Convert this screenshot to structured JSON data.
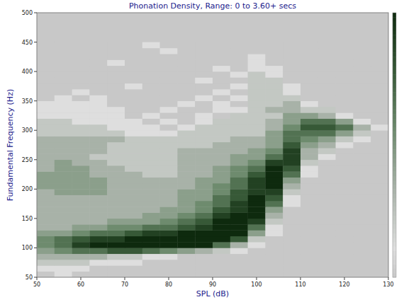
{
  "chart_data": {
    "type": "heatmap",
    "title": "Phonation Density, Range: 0 to 3.60+ secs",
    "x_label": "SPL (dB)",
    "y_label": "Fundamental Frequency (Hz)",
    "xlim": [
      50,
      130
    ],
    "ylim": [
      50,
      500
    ],
    "xticks": [
      50,
      60,
      70,
      80,
      90,
      100,
      110,
      120,
      130
    ],
    "yticks": [
      50,
      100,
      150,
      200,
      250,
      300,
      350,
      400,
      450,
      500
    ],
    "grid": false,
    "x_bins": [
      50,
      54,
      58,
      62,
      66,
      70,
      74,
      78,
      82,
      86,
      90,
      94,
      98,
      102,
      106,
      110,
      114,
      118,
      122,
      126,
      130
    ],
    "y_bins": [
      50,
      60,
      70,
      80,
      90,
      100,
      110,
      120,
      130,
      140,
      150,
      160,
      170,
      180,
      190,
      200,
      210,
      220,
      230,
      240,
      250,
      260,
      270,
      280,
      290,
      300,
      310,
      320,
      330,
      340,
      350,
      360,
      370,
      380,
      390,
      400,
      410,
      420,
      430,
      440,
      450
    ],
    "zlim": [
      0,
      9
    ],
    "cells": [
      [
        0,
        1,
        0,
        0,
        0,
        0,
        0,
        0,
        0,
        0,
        0,
        0,
        0,
        0,
        0,
        0,
        0,
        0,
        0,
        0
      ],
      [
        1,
        1,
        1,
        0,
        0,
        0,
        0,
        0,
        0,
        0,
        0,
        0,
        0,
        0,
        0,
        0,
        0,
        0,
        0,
        0
      ],
      [
        2,
        2,
        2,
        1,
        1,
        1,
        0,
        0,
        0,
        0,
        0,
        0,
        0,
        0,
        0,
        0,
        0,
        0,
        0,
        0
      ],
      [
        3,
        3,
        3,
        3,
        2,
        2,
        1,
        1,
        0,
        0,
        0,
        0,
        0,
        0,
        0,
        0,
        0,
        0,
        0,
        0
      ],
      [
        4,
        5,
        6,
        6,
        7,
        7,
        6,
        5,
        4,
        3,
        2,
        1,
        0,
        0,
        0,
        0,
        0,
        0,
        0,
        0
      ],
      [
        5,
        6,
        8,
        9,
        9,
        9,
        9,
        9,
        9,
        9,
        6,
        3,
        1,
        0,
        0,
        0,
        0,
        0,
        0,
        0
      ],
      [
        5,
        6,
        7,
        8,
        8,
        9,
        9,
        9,
        9,
        9,
        9,
        7,
        2,
        0,
        0,
        0,
        0,
        0,
        0,
        0
      ],
      [
        4,
        4,
        5,
        6,
        6,
        7,
        8,
        8,
        9,
        9,
        9,
        9,
        4,
        1,
        0,
        0,
        0,
        0,
        0,
        0
      ],
      [
        3,
        3,
        4,
        4,
        5,
        5,
        6,
        6,
        7,
        8,
        9,
        9,
        6,
        1,
        0,
        0,
        0,
        0,
        0,
        0
      ],
      [
        3,
        3,
        3,
        3,
        4,
        4,
        4,
        5,
        6,
        7,
        9,
        9,
        8,
        2,
        0,
        0,
        0,
        0,
        0,
        0
      ],
      [
        3,
        3,
        3,
        3,
        3,
        3,
        4,
        4,
        5,
        6,
        8,
        9,
        9,
        3,
        0,
        0,
        0,
        0,
        0,
        0
      ],
      [
        3,
        3,
        3,
        3,
        3,
        3,
        3,
        4,
        4,
        5,
        7,
        8,
        9,
        4,
        0,
        0,
        0,
        0,
        0,
        0
      ],
      [
        3,
        3,
        3,
        3,
        3,
        3,
        3,
        3,
        4,
        5,
        6,
        8,
        9,
        6,
        1,
        0,
        0,
        0,
        0,
        0
      ],
      [
        3,
        3,
        3,
        3,
        3,
        3,
        3,
        3,
        4,
        4,
        6,
        7,
        9,
        7,
        1,
        0,
        0,
        0,
        0,
        0
      ],
      [
        3,
        4,
        4,
        4,
        3,
        3,
        3,
        3,
        4,
        4,
        5,
        7,
        8,
        8,
        2,
        0,
        0,
        0,
        0,
        0
      ],
      [
        4,
        4,
        4,
        4,
        3,
        3,
        3,
        3,
        3,
        4,
        5,
        6,
        8,
        9,
        3,
        0,
        0,
        0,
        0,
        0
      ],
      [
        4,
        4,
        4,
        4,
        3,
        3,
        3,
        3,
        3,
        4,
        4,
        6,
        8,
        9,
        4,
        0,
        0,
        0,
        0,
        0
      ],
      [
        4,
        4,
        4,
        3,
        3,
        3,
        2,
        2,
        3,
        3,
        4,
        5,
        7,
        9,
        6,
        1,
        0,
        0,
        0,
        0
      ],
      [
        3,
        4,
        4,
        3,
        3,
        2,
        2,
        2,
        3,
        3,
        4,
        5,
        6,
        9,
        7,
        1,
        0,
        0,
        0,
        0
      ],
      [
        3,
        4,
        3,
        3,
        2,
        2,
        2,
        2,
        3,
        3,
        3,
        4,
        5,
        8,
        8,
        2,
        0,
        0,
        0,
        0
      ],
      [
        3,
        3,
        3,
        2,
        2,
        2,
        2,
        2,
        3,
        3,
        3,
        4,
        4,
        6,
        8,
        3,
        1,
        0,
        0,
        0
      ],
      [
        3,
        3,
        3,
        3,
        2,
        2,
        2,
        2,
        3,
        3,
        3,
        3,
        4,
        5,
        8,
        3,
        2,
        0,
        0,
        0
      ],
      [
        3,
        3,
        3,
        3,
        2,
        2,
        2,
        2,
        2,
        2,
        3,
        3,
        3,
        4,
        7,
        4,
        3,
        1,
        0,
        0
      ],
      [
        3,
        3,
        3,
        3,
        3,
        2,
        2,
        2,
        2,
        2,
        2,
        3,
        3,
        4,
        6,
        5,
        4,
        2,
        1,
        0
      ],
      [
        2,
        2,
        2,
        2,
        2,
        1,
        1,
        1,
        2,
        2,
        2,
        2,
        2,
        4,
        6,
        6,
        6,
        4,
        2,
        0
      ],
      [
        2,
        2,
        2,
        2,
        1,
        1,
        1,
        0,
        1,
        2,
        2,
        2,
        2,
        3,
        5,
        7,
        7,
        6,
        3,
        1
      ],
      [
        2,
        2,
        1,
        1,
        1,
        1,
        0,
        1,
        0,
        1,
        2,
        2,
        2,
        3,
        4,
        6,
        6,
        4,
        1,
        0
      ],
      [
        1,
        1,
        1,
        1,
        1,
        0,
        1,
        0,
        0,
        1,
        0,
        2,
        2,
        2,
        4,
        4,
        3,
        1,
        0,
        0
      ],
      [
        1,
        1,
        1,
        1,
        1,
        0,
        0,
        1,
        0,
        0,
        1,
        1,
        2,
        3,
        3,
        2,
        2,
        0,
        0,
        0
      ],
      [
        1,
        1,
        1,
        1,
        0,
        0,
        0,
        0,
        1,
        0,
        1,
        0,
        2,
        2,
        3,
        1,
        0,
        0,
        0,
        0
      ],
      [
        0,
        1,
        0,
        1,
        0,
        0,
        0,
        0,
        0,
        1,
        0,
        1,
        2,
        2,
        2,
        0,
        0,
        0,
        0,
        0
      ],
      [
        0,
        0,
        1,
        0,
        0,
        0,
        0,
        0,
        0,
        0,
        1,
        0,
        2,
        2,
        1,
        0,
        0,
        0,
        0,
        0
      ],
      [
        0,
        0,
        0,
        0,
        0,
        1,
        0,
        0,
        0,
        0,
        0,
        1,
        2,
        2,
        1,
        0,
        0,
        0,
        0,
        0
      ],
      [
        0,
        0,
        0,
        0,
        0,
        0,
        0,
        0,
        0,
        1,
        0,
        0,
        2,
        2,
        0,
        0,
        0,
        0,
        0,
        0
      ],
      [
        0,
        0,
        0,
        0,
        0,
        0,
        0,
        0,
        0,
        0,
        0,
        1,
        2,
        1,
        0,
        0,
        0,
        0,
        0,
        0
      ],
      [
        0,
        0,
        0,
        0,
        0,
        0,
        0,
        0,
        0,
        0,
        1,
        0,
        1,
        1,
        0,
        0,
        0,
        0,
        0,
        0
      ],
      [
        0,
        0,
        0,
        0,
        1,
        0,
        0,
        0,
        0,
        0,
        0,
        0,
        1,
        0,
        0,
        0,
        0,
        0,
        0,
        0
      ],
      [
        0,
        0,
        0,
        0,
        0,
        0,
        0,
        0,
        0,
        0,
        0,
        0,
        1,
        0,
        0,
        0,
        0,
        0,
        0,
        0
      ],
      [
        0,
        0,
        0,
        0,
        0,
        0,
        0,
        1,
        0,
        0,
        0,
        0,
        0,
        0,
        0,
        0,
        0,
        0,
        0,
        0
      ],
      [
        0,
        0,
        0,
        0,
        0,
        0,
        1,
        0,
        0,
        0,
        0,
        0,
        0,
        0,
        0,
        0,
        0,
        0,
        0,
        0
      ]
    ]
  }
}
